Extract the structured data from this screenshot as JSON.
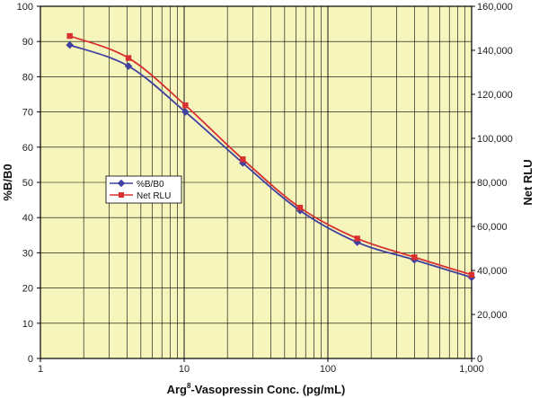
{
  "chart_data": {
    "type": "line",
    "xlabel_parts": {
      "before": "Arg",
      "sup": "8",
      "after": "-Vasopressin Conc. (pg/mL)"
    },
    "ylabel_left": "%B/B0",
    "ylabel_right": "Net RLU",
    "x_scale": "log",
    "xlim": [
      1,
      1000
    ],
    "ylim_left": [
      0,
      100
    ],
    "ylim_right": [
      0,
      160000
    ],
    "x_ticks": [
      1,
      10,
      100,
      1000
    ],
    "x_tick_labels": [
      "1",
      "10",
      "100",
      "1,000"
    ],
    "y_left_ticks": [
      0,
      10,
      20,
      30,
      40,
      50,
      60,
      70,
      80,
      90,
      100
    ],
    "y_left_tick_labels": [
      "0",
      "10",
      "20",
      "30",
      "40",
      "50",
      "60",
      "70",
      "80",
      "90",
      "100"
    ],
    "y_right_ticks": [
      0,
      20000,
      40000,
      60000,
      80000,
      100000,
      120000,
      140000,
      160000
    ],
    "y_right_tick_labels": [
      "0",
      "20,000",
      "40,000",
      "60,000",
      "80,000",
      "100,000",
      "120,000",
      "140,000",
      "160,000"
    ],
    "grid": true,
    "legend_position": "center-left",
    "background_color": "#f5f5bc",
    "series": [
      {
        "name": "%B/B0",
        "axis": "left",
        "color": "#4040a0",
        "marker": "diamond",
        "x": [
          1.6,
          4.1,
          10.2,
          25.6,
          64,
          160,
          400,
          1000
        ],
        "y": [
          89,
          83,
          70,
          55.5,
          42,
          33,
          28,
          23
        ]
      },
      {
        "name": "Net RLU",
        "axis": "right",
        "color": "#d83030",
        "marker": "square",
        "x": [
          1.6,
          4.1,
          10.2,
          25.6,
          64,
          160,
          400,
          1000
        ],
        "y": [
          146500,
          136500,
          115000,
          90500,
          68500,
          54500,
          46000,
          38000
        ]
      }
    ]
  }
}
